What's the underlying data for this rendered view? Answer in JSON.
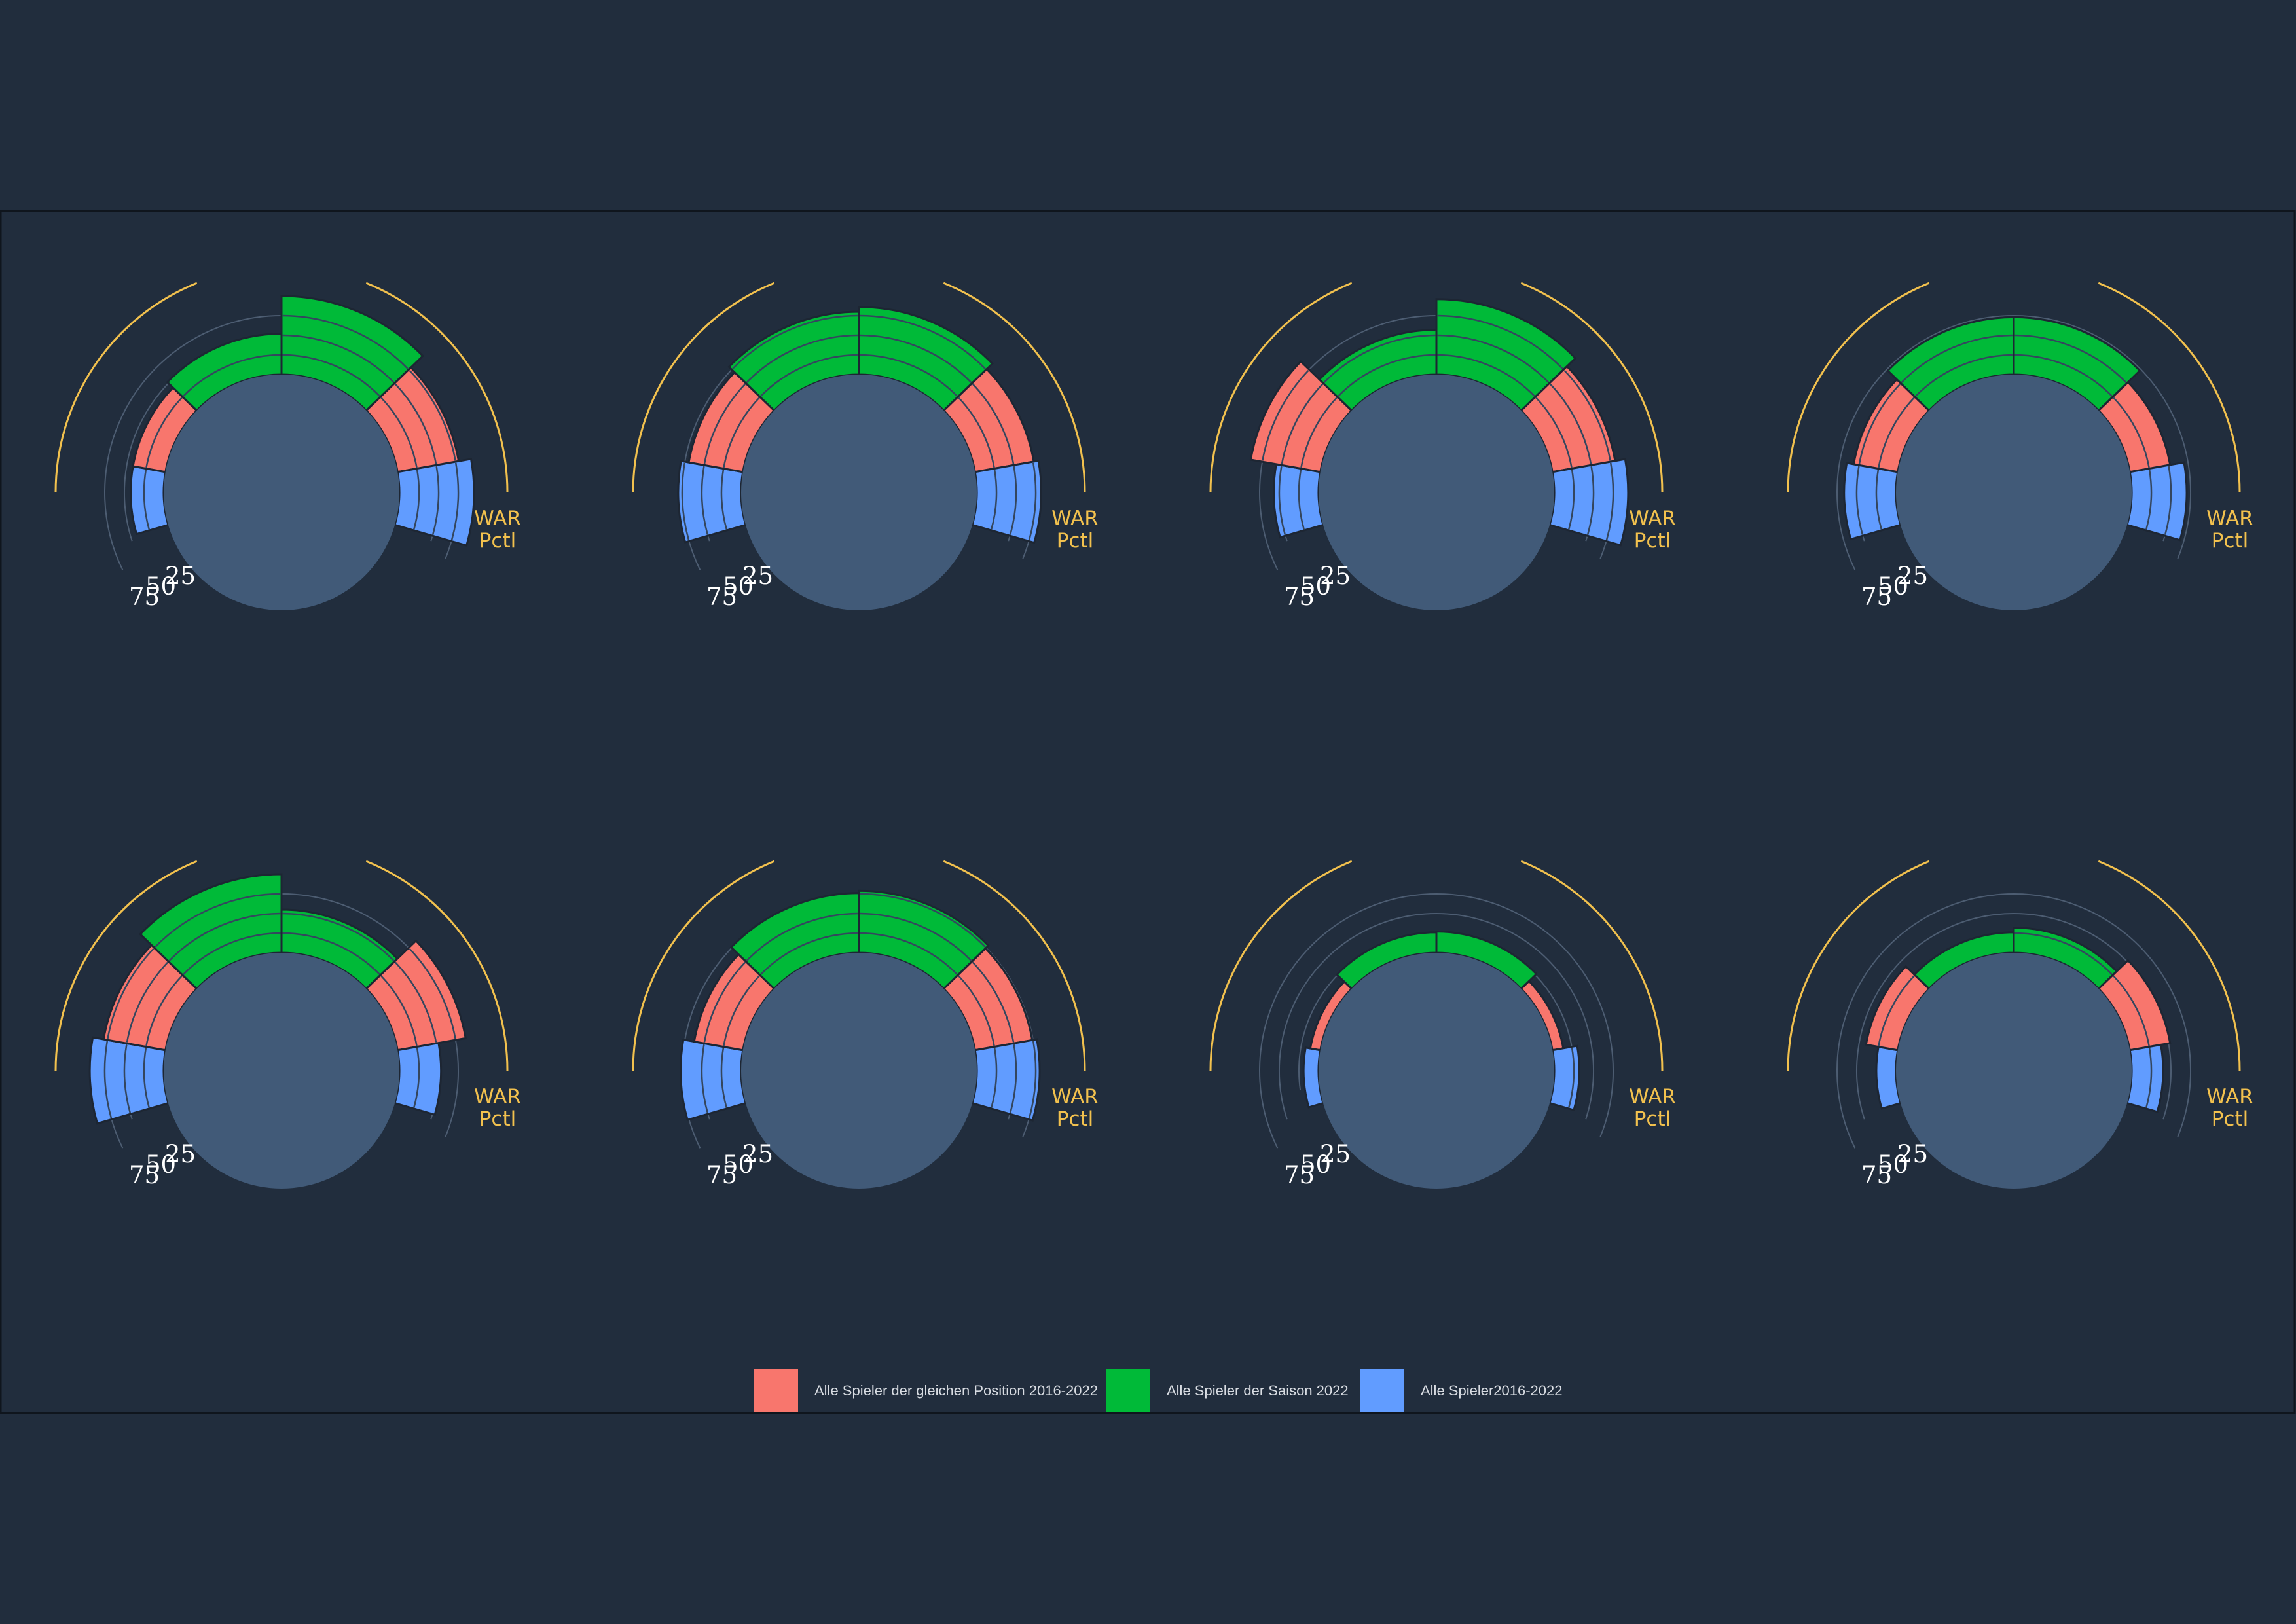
{
  "colors": {
    "background": "#212d3d",
    "panel_border": "#0f151d",
    "center_disc": "#415a78",
    "grid_ring": "#4d5d72",
    "arc": "#f2c14e",
    "segment_divider": "#34465e",
    "position_peers": "#f8766d",
    "season": "#00ba38",
    "all_players": "#619cff"
  },
  "legend": [
    {
      "key": "position_peers",
      "label": "Alle Spieler der gleichen Position 2016-2022",
      "color": "#f8766d"
    },
    {
      "key": "season",
      "label": "Alle Spieler der Saison 2022",
      "color": "#00ba38"
    },
    {
      "key": "all_players",
      "label": "Alle Spieler2016-2022",
      "color": "#619cff"
    }
  ],
  "war_label": {
    "line1": "WAR",
    "line2": "Pctl"
  },
  "chart_data": [
    {
      "type": "polar-bar",
      "tick_labels": [
        "25",
        "50",
        "75"
      ],
      "wedges": [
        {
          "series": "all_players",
          "value": 42
        },
        {
          "series": "position_peers",
          "value": 42
        },
        {
          "series": "season",
          "value": 52
        },
        {
          "series": "season",
          "value": 100
        },
        {
          "series": "position_peers",
          "value": 79
        },
        {
          "series": "all_players",
          "value": 95
        }
      ]
    },
    {
      "type": "polar-bar",
      "tick_labels": [
        "25",
        "50",
        "75"
      ],
      "wedges": [
        {
          "series": "all_players",
          "value": 80
        },
        {
          "series": "position_peers",
          "value": 70
        },
        {
          "series": "season",
          "value": 80
        },
        {
          "series": "season",
          "value": 86
        },
        {
          "series": "position_peers",
          "value": 76
        },
        {
          "series": "all_players",
          "value": 82
        }
      ]
    },
    {
      "type": "polar-bar",
      "tick_labels": [
        "25",
        "50",
        "75"
      ],
      "wedges": [
        {
          "series": "all_players",
          "value": 57
        },
        {
          "series": "position_peers",
          "value": 90
        },
        {
          "series": "season",
          "value": 57
        },
        {
          "series": "season",
          "value": 96
        },
        {
          "series": "position_peers",
          "value": 81
        },
        {
          "series": "all_players",
          "value": 94
        }
      ]
    },
    {
      "type": "polar-bar",
      "tick_labels": [
        "25",
        "50",
        "75"
      ],
      "wedges": [
        {
          "series": "all_players",
          "value": 66
        },
        {
          "series": "position_peers",
          "value": 57
        },
        {
          "series": "season",
          "value": 73
        },
        {
          "series": "season",
          "value": 73
        },
        {
          "series": "position_peers",
          "value": 52
        },
        {
          "series": "all_players",
          "value": 70
        }
      ]
    },
    {
      "type": "polar-bar",
      "tick_labels": [
        "25",
        "50",
        "75"
      ],
      "wedges": [
        {
          "series": "all_players",
          "value": 94
        },
        {
          "series": "position_peers",
          "value": 80
        },
        {
          "series": "season",
          "value": 100
        },
        {
          "series": "season",
          "value": 55
        },
        {
          "series": "position_peers",
          "value": 88
        },
        {
          "series": "all_players",
          "value": 53
        }
      ]
    },
    {
      "type": "polar-bar",
      "tick_labels": [
        "25",
        "50",
        "75"
      ],
      "wedges": [
        {
          "series": "all_players",
          "value": 77
        },
        {
          "series": "position_peers",
          "value": 63
        },
        {
          "series": "season",
          "value": 76
        },
        {
          "series": "season",
          "value": 79
        },
        {
          "series": "position_peers",
          "value": 74
        },
        {
          "series": "all_players",
          "value": 80
        }
      ]
    },
    {
      "type": "polar-bar",
      "tick_labels": [
        "25",
        "50",
        "75"
      ],
      "wedges": [
        {
          "series": "all_players",
          "value": 19
        },
        {
          "series": "position_peers",
          "value": 13
        },
        {
          "series": "season",
          "value": 26
        },
        {
          "series": "season",
          "value": 27
        },
        {
          "series": "position_peers",
          "value": 14
        },
        {
          "series": "all_players",
          "value": 32
        }
      ]
    },
    {
      "type": "polar-bar",
      "tick_labels": [
        "25",
        "50",
        "75"
      ],
      "wedges": [
        {
          "series": "all_players",
          "value": 25
        },
        {
          "series": "position_peers",
          "value": 41
        },
        {
          "series": "season",
          "value": 26
        },
        {
          "series": "season",
          "value": 32
        },
        {
          "series": "position_peers",
          "value": 52
        },
        {
          "series": "all_players",
          "value": 40
        }
      ]
    }
  ]
}
